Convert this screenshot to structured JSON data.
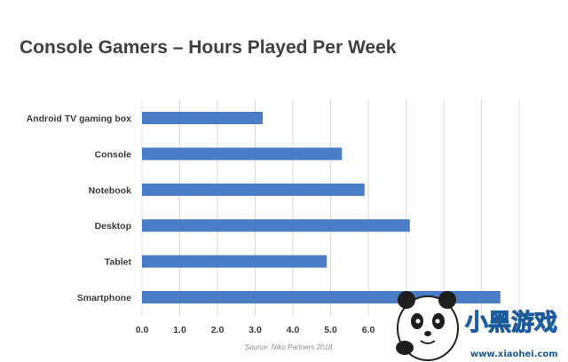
{
  "chart_data": {
    "type": "bar",
    "orientation": "horizontal",
    "title": "Console Gamers – Hours Played Per Week",
    "categories": [
      "Android TV gaming box",
      "Console",
      "Notebook",
      "Desktop",
      "Tablet",
      "Smartphone"
    ],
    "values": [
      3.2,
      5.3,
      5.9,
      7.1,
      4.9,
      9.5
    ],
    "xlim": [
      0,
      10
    ],
    "xticks": [
      "0.0",
      "1.0",
      "2.0",
      "3.0",
      "4.0",
      "5.0",
      "6.0"
    ],
    "grid": true,
    "source": "Source: Niko Partners 2018",
    "colors": {
      "bar": "#4a7cc7",
      "grid": "#d9d9d9",
      "title": "#404040"
    }
  },
  "watermark": {
    "text": "小黑游戏",
    "url": "www.xiaohei.com"
  }
}
